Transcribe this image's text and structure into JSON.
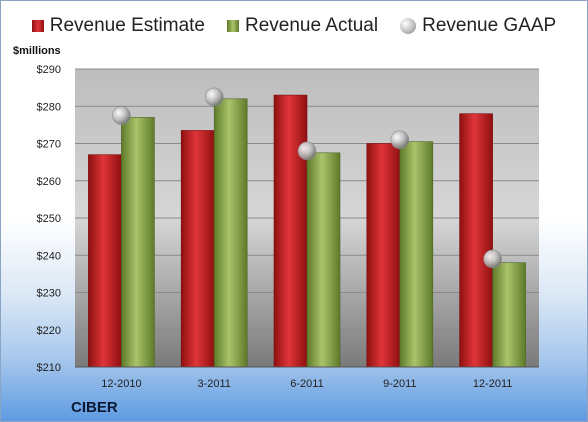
{
  "chart_data": {
    "type": "bar",
    "categories": [
      "12-2010",
      "3-2011",
      "6-2011",
      "9-2011",
      "12-2011"
    ],
    "series": [
      {
        "name": "Revenue Estimate",
        "kind": "bar",
        "values": [
          267,
          273.5,
          283,
          270,
          278
        ]
      },
      {
        "name": "Revenue Actual",
        "kind": "bar",
        "values": [
          277,
          282,
          267.5,
          270.5,
          238
        ]
      },
      {
        "name": "Revenue GAAP",
        "kind": "point",
        "values": [
          277.5,
          282.5,
          268,
          271,
          239
        ]
      }
    ],
    "ylabel": "$millions",
    "ylim": [
      210,
      290
    ],
    "yticks": [
      "$290",
      "$280",
      "$270",
      "$260",
      "$250",
      "$240",
      "$230",
      "$220",
      "$210"
    ],
    "ytick_values": [
      290,
      280,
      270,
      260,
      250,
      240,
      230,
      220,
      210
    ],
    "grid": true,
    "legend": "top",
    "company": "CIBER",
    "colors": {
      "estimate": "#d42026",
      "actual": "#8fae4e",
      "gaap": "#c0c0c0"
    }
  }
}
